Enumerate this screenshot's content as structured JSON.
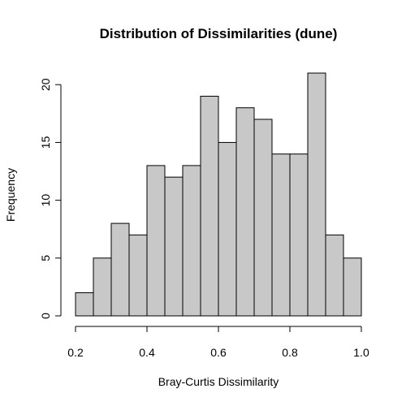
{
  "chart_data": {
    "type": "bar",
    "title": "Distribution of Dissimilarities (dune)",
    "xlabel": "Bray-Curtis Dissimilarity",
    "ylabel": "Frequency",
    "bin_edges": [
      0.2,
      0.25,
      0.3,
      0.35,
      0.4,
      0.45,
      0.5,
      0.55,
      0.6,
      0.65,
      0.7,
      0.75,
      0.8,
      0.85,
      0.9,
      0.95,
      1.0
    ],
    "values": [
      2,
      5,
      8,
      7,
      13,
      12,
      13,
      19,
      15,
      18,
      17,
      14,
      14,
      21,
      7,
      5
    ],
    "xlim": [
      0.2,
      1.0
    ],
    "ylim": [
      0,
      21
    ],
    "x_ticks": [
      0.2,
      0.4,
      0.6,
      0.8,
      1.0
    ],
    "x_tick_labels": [
      "0.2",
      "0.4",
      "0.6",
      "0.8",
      "1.0"
    ],
    "y_ticks": [
      0,
      5,
      10,
      15,
      20
    ],
    "y_tick_labels": [
      "0",
      "5",
      "10",
      "15",
      "20"
    ],
    "grid": false,
    "bar_fill": "#c8c8c8",
    "bar_stroke": "#000000"
  }
}
